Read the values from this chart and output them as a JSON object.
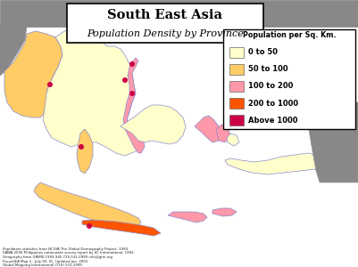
{
  "title_line1": "South East Asia",
  "title_line2": "Population Density by Province",
  "legend_title": "Population per Sq. Km.",
  "legend_items": [
    {
      "label": "0 to 50",
      "color": "#FFFFCC"
    },
    {
      "label": "50 to 100",
      "color": "#FFCC66"
    },
    {
      "label": "100 to 200",
      "color": "#FF99AA"
    },
    {
      "label": "200 to 1000",
      "color": "#FF5500"
    },
    {
      "label": "Above 1000",
      "color": "#CC0044"
    }
  ],
  "bg_color": "#FFFFFF",
  "gray_color": "#888888",
  "border_color": "#8888CC",
  "title_box_facecolor": "#FFFFFF",
  "title_box_edgecolor": "#000000",
  "legend_box_facecolor": "#FFFFFF",
  "legend_box_edgecolor": "#000000",
  "footnote1": "Population statistics from NCGIA The Global Demography Project, 1994.",
  "footnote2": "SAWA 2000 Philippines nationwide survey report by SC International, 1992.",
  "footnote3": "Geography from GRIMS 1993-945 719-531-2999 info@gmi.org",
  "footnote4": "FocusSEA Map 2 - July 99, VL. Updated Jan. 2001",
  "footnote5": "Global Mapping International (719) 531-2999",
  "figsize": [
    4.02,
    3.0
  ],
  "dpi": 100
}
